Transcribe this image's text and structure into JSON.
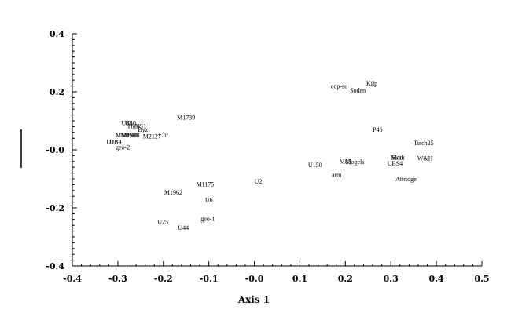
{
  "chart_data": {
    "type": "scatter",
    "title": "",
    "xlabel": "Axis 1",
    "ylabel": "",
    "xlim": [
      -0.4,
      0.5
    ],
    "ylim": [
      -0.4,
      0.4
    ],
    "xticks": [
      "-0.4",
      "-0.3",
      "-0.2",
      "-0.1",
      "-0.0",
      "0.1",
      "0.2",
      "0.3",
      "0.4",
      "0.5"
    ],
    "yticks": [
      "0.4",
      "0.2",
      "-0.0",
      "-0.2",
      "-0.4"
    ],
    "grid": false,
    "legend": "none",
    "points": [
      {
        "label": "cop-su",
        "x": 0.168,
        "y": 0.22
      },
      {
        "label": "Kilp",
        "x": 0.246,
        "y": 0.23
      },
      {
        "label": "Soden",
        "x": 0.21,
        "y": 0.206
      },
      {
        "label": "P46",
        "x": 0.26,
        "y": 0.07
      },
      {
        "label": "Tisch25",
        "x": 0.35,
        "y": 0.025
      },
      {
        "label": "W&H",
        "x": 0.358,
        "y": -0.028
      },
      {
        "label": "Merk",
        "x": 0.3,
        "y": -0.025
      },
      {
        "label": "Siate",
        "x": 0.302,
        "y": -0.026
      },
      {
        "label": "UBS4",
        "x": 0.292,
        "y": -0.046
      },
      {
        "label": "Mogels",
        "x": 0.2,
        "y": -0.041
      },
      {
        "label": "M85",
        "x": 0.187,
        "y": -0.039
      },
      {
        "label": "U150",
        "x": 0.118,
        "y": -0.052
      },
      {
        "label": "arm",
        "x": 0.17,
        "y": -0.085
      },
      {
        "label": "Attridge",
        "x": 0.31,
        "y": -0.1
      },
      {
        "label": "U2",
        "x": 0.0,
        "y": -0.108
      },
      {
        "label": "M1175",
        "x": -0.128,
        "y": -0.118
      },
      {
        "label": "M1962",
        "x": -0.198,
        "y": -0.146
      },
      {
        "label": "U6",
        "x": -0.108,
        "y": -0.172
      },
      {
        "label": "geo-1",
        "x": -0.118,
        "y": -0.237
      },
      {
        "label": "U25",
        "x": -0.213,
        "y": -0.247
      },
      {
        "label": "U44",
        "x": -0.168,
        "y": -0.268
      },
      {
        "label": "M1739",
        "x": -0.17,
        "y": 0.112
      },
      {
        "label": "U32",
        "x": -0.292,
        "y": 0.093
      },
      {
        "label": "U30",
        "x": -0.284,
        "y": 0.093
      },
      {
        "label": "Theo",
        "x": -0.28,
        "y": 0.082
      },
      {
        "label": "NS1",
        "x": -0.262,
        "y": 0.082
      },
      {
        "label": "Byz",
        "x": -0.256,
        "y": 0.07
      },
      {
        "label": "Chr",
        "x": -0.21,
        "y": 0.053
      },
      {
        "label": "M2127",
        "x": -0.245,
        "y": 0.047
      },
      {
        "label": "M1885",
        "x": -0.305,
        "y": 0.052
      },
      {
        "label": "M1908",
        "x": -0.292,
        "y": 0.052
      },
      {
        "label": "M1596",
        "x": -0.294,
        "y": 0.052
      },
      {
        "label": "U12",
        "x": -0.325,
        "y": 0.028
      },
      {
        "label": "UB4",
        "x": -0.318,
        "y": 0.028
      },
      {
        "label": "geo-2",
        "x": -0.305,
        "y": 0.009
      }
    ]
  }
}
